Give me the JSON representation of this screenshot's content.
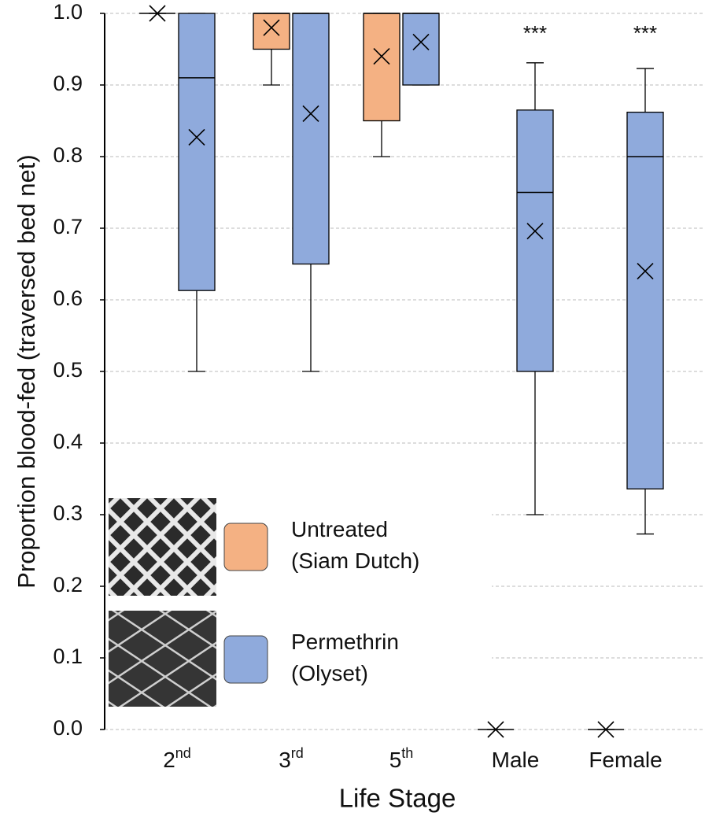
{
  "chart_data": {
    "type": "box",
    "y_label": "Proportion blood-fed (traversed bed net)",
    "x_label": "Life Stage",
    "categories": [
      "2",
      "3",
      "5",
      "Male",
      "Female"
    ],
    "category_superscripts": [
      "nd",
      "rd",
      "th",
      null,
      null
    ],
    "ylim": [
      0,
      1
    ],
    "yticks": [
      {
        "value": 0,
        "label": "0.0"
      },
      0.1,
      0.2,
      0.3,
      0.4,
      0.5,
      0.6,
      0.7,
      0.8,
      0.9,
      {
        "value": 1,
        "label": "1.0"
      }
    ],
    "grid": true,
    "legend": "lower-left",
    "series": [
      {
        "name": "Untreated (Siam Dutch)",
        "color": "#f4b183",
        "min": [
          1,
          0.9,
          0.8,
          0,
          0
        ],
        "q1": [
          1,
          0.95,
          0.85,
          0,
          0
        ],
        "median": [
          1,
          1,
          1,
          0,
          0
        ],
        "q3": [
          1,
          1,
          1,
          0,
          0
        ],
        "max": [
          1,
          1,
          1,
          0,
          0
        ],
        "mean": [
          1,
          0.98,
          0.94,
          0,
          0
        ]
      },
      {
        "name": "Permethrin (Olyset)",
        "color": "#8faadc",
        "min": [
          0.5,
          0.5,
          0.9,
          0.3,
          0.273
        ],
        "q1": [
          0.613,
          0.65,
          0.9,
          0.5,
          0.336
        ],
        "median": [
          0.91,
          1,
          1,
          0.75,
          0.8
        ],
        "q3": [
          1,
          1,
          1,
          0.865,
          0.862
        ],
        "max": [
          1,
          1,
          1,
          0.931,
          0.923
        ],
        "mean": [
          0.827,
          0.86,
          0.96,
          0.696,
          0.64
        ]
      }
    ],
    "annotations": [
      {
        "text": "***",
        "x": "Male"
      },
      {
        "text": "***",
        "x": "Female"
      }
    ]
  }
}
